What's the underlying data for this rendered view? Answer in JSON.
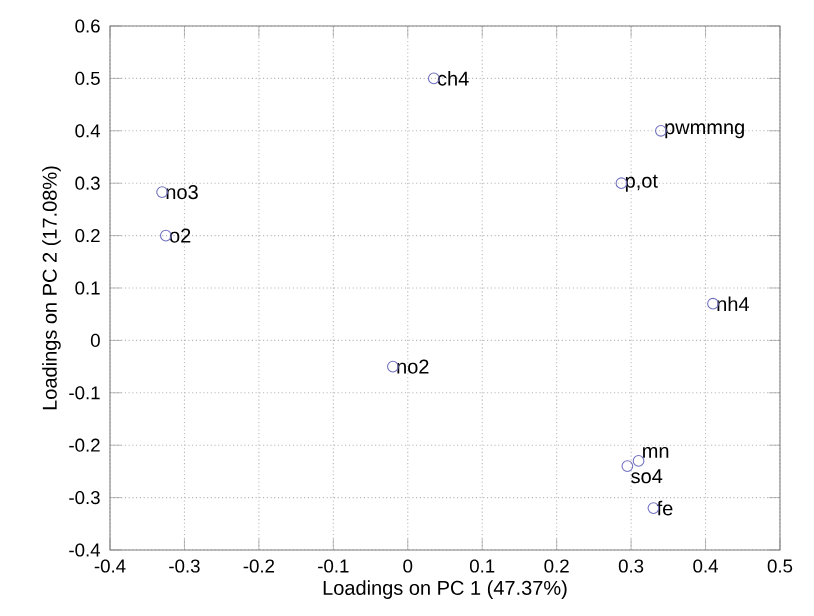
{
  "chart_data": {
    "type": "scatter",
    "xlabel": "Loadings on PC 1 (47.37%)",
    "ylabel": "Loadings on PC 2 (17.08%)",
    "x": [
      0.035,
      0.34,
      0.287,
      -0.33,
      -0.325,
      -0.02,
      0.41,
      0.31,
      0.295,
      0.33
    ],
    "series": [
      {
        "color": "#7070c0",
        "values": [
          0.5,
          0.4,
          0.3,
          0.283,
          0.2,
          -0.05,
          0.07,
          -0.23,
          -0.24,
          -0.32
        ]
      }
    ],
    "annotations": [
      {
        "text": "ch4",
        "x": 0.035,
        "y": 0.5
      },
      {
        "text": "pwmmng",
        "x": 0.34,
        "y": 0.4
      },
      {
        "text": "p,ot",
        "x": 0.287,
        "y": 0.3
      },
      {
        "text": "no3",
        "x": -0.33,
        "y": 0.283
      },
      {
        "text": "o2",
        "x": -0.325,
        "y": 0.2
      },
      {
        "text": "no2",
        "x": -0.02,
        "y": -0.05
      },
      {
        "text": "nh4",
        "x": 0.41,
        "y": 0.07
      },
      {
        "text": "mn",
        "x": 0.31,
        "y": -0.23
      },
      {
        "text": "so4",
        "x": 0.295,
        "y": -0.24
      },
      {
        "text": "fe",
        "x": 0.33,
        "y": -0.32
      }
    ],
    "xlim": [
      -0.4,
      0.5
    ],
    "ylim": [
      -0.4,
      0.6
    ],
    "xticks": [
      -0.4,
      -0.3,
      -0.2,
      -0.1,
      0,
      0.1,
      0.2,
      0.3,
      0.4,
      0.5
    ],
    "yticks": [
      -0.4,
      -0.3,
      -0.2,
      -0.1,
      0,
      0.1,
      0.2,
      0.3,
      0.4,
      0.5,
      0.6
    ],
    "grid": true,
    "marker": "circle"
  }
}
